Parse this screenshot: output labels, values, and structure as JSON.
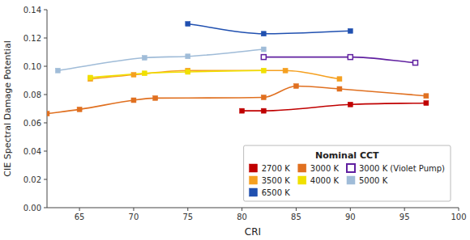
{
  "chart_data": {
    "type": "line",
    "xlabel": "CRI",
    "ylabel": "CIE Spectral Damage Potential",
    "xlim": [
      62,
      100
    ],
    "ylim": [
      0,
      0.14
    ],
    "xticks": [
      65,
      70,
      75,
      80,
      85,
      90,
      95,
      100
    ],
    "yticks": [
      {
        "value": 0,
        "label": "0.00"
      },
      0.02,
      0.04,
      0.06,
      0.08,
      {
        "value": 0.1,
        "label": "0.10"
      },
      0.12,
      0.14
    ],
    "legend": "lower right",
    "legend_title": "Nominal CCT",
    "series": [
      {
        "name": "2700 K",
        "color": "#c00000",
        "marker": "square",
        "x": [
          80,
          82,
          90,
          97
        ],
        "values": [
          0.0685,
          0.0685,
          0.073,
          0.074
        ]
      },
      {
        "name": "3000 K",
        "color": "#e07020",
        "marker": "square",
        "x": [
          62,
          65,
          70,
          72,
          82,
          85,
          89,
          97
        ],
        "values": [
          0.0665,
          0.0695,
          0.076,
          0.0775,
          0.078,
          0.086,
          0.084,
          0.079
        ]
      },
      {
        "name": "3000 K (Violet Pump)",
        "color": "#6020a0",
        "marker": "open-square",
        "x": [
          82,
          90,
          96
        ],
        "values": [
          0.1065,
          0.1065,
          0.1025
        ]
      },
      {
        "name": "3500 K",
        "color": "#f5a020",
        "marker": "square",
        "x": [
          66,
          70,
          75,
          84,
          89
        ],
        "values": [
          0.091,
          0.094,
          0.097,
          0.097,
          0.091
        ]
      },
      {
        "name": "4000 K",
        "color": "#f0e000",
        "marker": "square",
        "x": [
          66,
          71,
          75,
          82
        ],
        "values": [
          0.092,
          0.095,
          0.096,
          0.097
        ]
      },
      {
        "name": "5000 K",
        "color": "#a0bcd8",
        "marker": "square",
        "x": [
          63,
          71,
          75,
          82
        ],
        "values": [
          0.097,
          0.106,
          0.107,
          0.112
        ]
      },
      {
        "name": "6500 K",
        "color": "#2050b0",
        "marker": "square",
        "x": [
          75,
          82,
          90
        ],
        "values": [
          0.13,
          0.123,
          0.125
        ]
      }
    ]
  }
}
